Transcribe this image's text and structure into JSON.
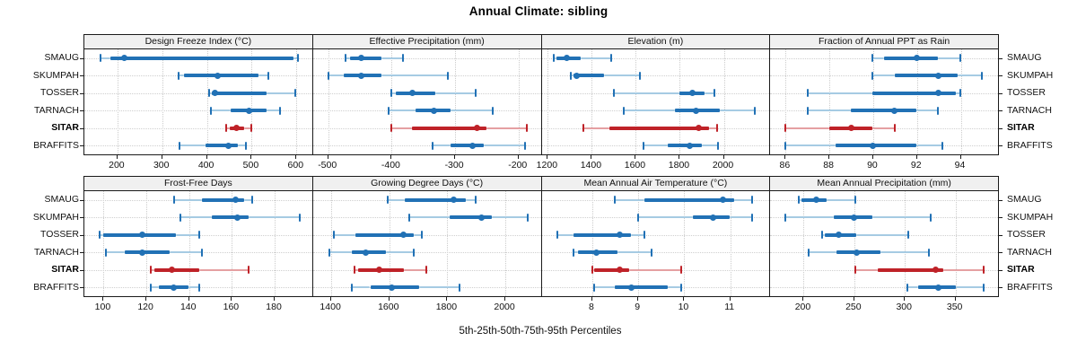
{
  "title": "Annual Climate: sibling",
  "caption": "5th-25th-50th-75th-95th Percentiles",
  "stations": [
    "SMAUG",
    "SKUMPAH",
    "TOSSER",
    "TARNACH",
    "SITAR",
    "BRAFFITS"
  ],
  "highlight_station": "SITAR",
  "colors": {
    "normal": "#2171b5",
    "normal_light": "#a6cbe3",
    "highlight": "#bf2228",
    "highlight_light": "#e5a0a2",
    "grid": "#cccccc",
    "header_bg": "#f0f0f0",
    "border": "#1a1a1a"
  },
  "chart_data": {
    "type": "scatter",
    "subtype": "dot-and-whisker percentile intervals (p5-p25-p50-p75-p95) per station, 8 trellis panels",
    "title": "Annual Climate: sibling",
    "footnote": "5th-25th-50th-75th-95th Percentiles",
    "categories": [
      "SMAUG",
      "SKUMPAH",
      "TOSSER",
      "TARNACH",
      "SITAR",
      "BRAFFITS"
    ],
    "highlight": "SITAR",
    "legend_position": "none",
    "grid": "dotted",
    "panels": [
      {
        "title": "Design Freeze Index (°C)",
        "xticks": [
          200,
          300,
          400,
          500,
          600
        ],
        "xlim": [
          126,
          635
        ],
        "series": [
          {
            "name": "SMAUG",
            "p": [
              163,
              185,
              216,
              595,
              605
            ]
          },
          {
            "name": "SKUMPAH",
            "p": [
              337,
              350,
              425,
              517,
              538
            ]
          },
          {
            "name": "TOSSER",
            "p": [
              405,
              412,
              420,
              535,
              600
            ]
          },
          {
            "name": "TARNACH",
            "p": [
              410,
              455,
              495,
              535,
              565
            ]
          },
          {
            "name": "SITAR",
            "p": [
              445,
              452,
              467,
              485,
              500
            ]
          },
          {
            "name": "BRAFFITS",
            "p": [
              340,
              398,
              450,
              470,
              488
            ]
          }
        ]
      },
      {
        "title": "Effective Precipitation (mm)",
        "xticks": [
          -500,
          -400,
          -300,
          -200
        ],
        "xlim": [
          -524,
          -165
        ],
        "series": [
          {
            "name": "SMAUG",
            "p": [
              -472,
              -465,
              -448,
              -415,
              -381
            ]
          },
          {
            "name": "SKUMPAH",
            "p": [
              -500,
              -475,
              -448,
              -415,
              -310
            ]
          },
          {
            "name": "TOSSER",
            "p": [
              -400,
              -393,
              -367,
              -330,
              -267
            ]
          },
          {
            "name": "TARNACH",
            "p": [
              -405,
              -362,
              -332,
              -306,
              -240
            ]
          },
          {
            "name": "SITAR",
            "p": [
              -400,
              -368,
              -264,
              -250,
              -185
            ]
          },
          {
            "name": "BRAFFITS",
            "p": [
              -335,
              -306,
              -272,
              -254,
              -188
            ]
          }
        ]
      },
      {
        "title": "Elevation (m)",
        "xticks": [
          1200,
          1400,
          1600,
          1800,
          2000
        ],
        "xlim": [
          1172,
          2207
        ],
        "series": [
          {
            "name": "SMAUG",
            "p": [
              1228,
              1240,
              1288,
              1350,
              1490
            ]
          },
          {
            "name": "SKUMPAH",
            "p": [
              1305,
              1318,
              1332,
              1458,
              1622
            ]
          },
          {
            "name": "TOSSER",
            "p": [
              1502,
              1800,
              1858,
              1915,
              1962
            ]
          },
          {
            "name": "TARNACH",
            "p": [
              1546,
              1780,
              1878,
              1984,
              2146
            ]
          },
          {
            "name": "SITAR",
            "p": [
              1364,
              1482,
              1888,
              1936,
              1972
            ]
          },
          {
            "name": "BRAFFITS",
            "p": [
              1638,
              1746,
              1848,
              1902,
              1977
            ]
          }
        ]
      },
      {
        "title": "Fraction of Annual PPT as Rain",
        "xticks": [
          86,
          88,
          90,
          92,
          94
        ],
        "xlim": [
          85.3,
          95.7
        ],
        "series": [
          {
            "name": "SMAUG",
            "p": [
              90.0,
              90.5,
              92.0,
              93.0,
              94.0
            ]
          },
          {
            "name": "SKUMPAH",
            "p": [
              90.0,
              91.0,
              93.0,
              93.9,
              95.0
            ]
          },
          {
            "name": "TOSSER",
            "p": [
              87.0,
              90.0,
              93.0,
              93.8,
              94.0
            ]
          },
          {
            "name": "TARNACH",
            "p": [
              87.0,
              89.0,
              91.0,
              92.0,
              93.0
            ]
          },
          {
            "name": "SITAR",
            "p": [
              86.0,
              88.0,
              89.0,
              90.0,
              91.0
            ]
          },
          {
            "name": "BRAFFITS",
            "p": [
              86.0,
              88.3,
              90.0,
              92.0,
              93.2
            ]
          }
        ]
      },
      {
        "title": "Frost-Free Days",
        "xticks": [
          100,
          120,
          140,
          160,
          180
        ],
        "xlim": [
          91,
          197.5
        ],
        "series": [
          {
            "name": "SMAUG",
            "p": [
              133,
              146,
              162,
              166,
              170
            ]
          },
          {
            "name": "SKUMPAH",
            "p": [
              136,
              151,
              163,
              168,
              192
            ]
          },
          {
            "name": "TOSSER",
            "p": [
              98,
              100,
              118,
              134,
              145
            ]
          },
          {
            "name": "TARNACH",
            "p": [
              101,
              110,
              118,
              131,
              146
            ]
          },
          {
            "name": "SITAR",
            "p": [
              122,
              124,
              132,
              145,
              168
            ]
          },
          {
            "name": "BRAFFITS",
            "p": [
              122,
              126,
              133,
              140,
              145
            ]
          }
        ]
      },
      {
        "title": "Growing Degree Days (°C)",
        "xticks": [
          1400,
          1600,
          1800,
          2000
        ],
        "xlim": [
          1337,
          2122
        ],
        "series": [
          {
            "name": "SMAUG",
            "p": [
              1595,
              1655,
              1825,
              1865,
              1900
            ]
          },
          {
            "name": "SKUMPAH",
            "p": [
              1670,
              1810,
              1920,
              1955,
              2080
            ]
          },
          {
            "name": "TOSSER",
            "p": [
              1410,
              1485,
              1650,
              1685,
              1715
            ]
          },
          {
            "name": "TARNACH",
            "p": [
              1395,
              1470,
              1520,
              1590,
              1685
            ]
          },
          {
            "name": "SITAR",
            "p": [
              1480,
              1492,
              1565,
              1650,
              1730
            ]
          },
          {
            "name": "BRAFFITS",
            "p": [
              1470,
              1535,
              1610,
              1705,
              1845
            ]
          }
        ]
      },
      {
        "title": "Mean Annual Air Temperature (°C)",
        "xticks": [
          8,
          9,
          10,
          11
        ],
        "xlim": [
          6.9,
          11.85
        ],
        "series": [
          {
            "name": "SMAUG",
            "p": [
              8.5,
              9.15,
              10.85,
              11.1,
              11.5
            ]
          },
          {
            "name": "SKUMPAH",
            "p": [
              9.0,
              10.2,
              10.65,
              11.0,
              11.5
            ]
          },
          {
            "name": "TOSSER",
            "p": [
              7.25,
              7.6,
              8.6,
              8.85,
              9.15
            ]
          },
          {
            "name": "TARNACH",
            "p": [
              7.6,
              7.7,
              8.1,
              8.55,
              9.3
            ]
          },
          {
            "name": "SITAR",
            "p": [
              8.0,
              8.05,
              8.6,
              8.8,
              9.95
            ]
          },
          {
            "name": "BRAFFITS",
            "p": [
              8.05,
              8.5,
              8.85,
              9.65,
              9.95
            ]
          }
        ]
      },
      {
        "title": "Mean Annual Precipitation (mm)",
        "xticks": [
          200,
          250,
          300,
          350
        ],
        "xlim": [
          167,
          392
        ],
        "series": [
          {
            "name": "SMAUG",
            "p": [
              195,
              198,
              213,
              223,
              251
            ]
          },
          {
            "name": "SKUMPAH",
            "p": [
              182,
              230,
              250,
              268,
              326
            ]
          },
          {
            "name": "TOSSER",
            "p": [
              218,
              221,
              235,
              252,
              304
            ]
          },
          {
            "name": "TARNACH",
            "p": [
              205,
              233,
              253,
              276,
              324
            ]
          },
          {
            "name": "SITAR",
            "p": [
              251,
              274,
              331,
              339,
              379
            ]
          },
          {
            "name": "BRAFFITS",
            "p": [
              303,
              314,
              334,
              351,
              379
            ]
          }
        ]
      }
    ]
  }
}
